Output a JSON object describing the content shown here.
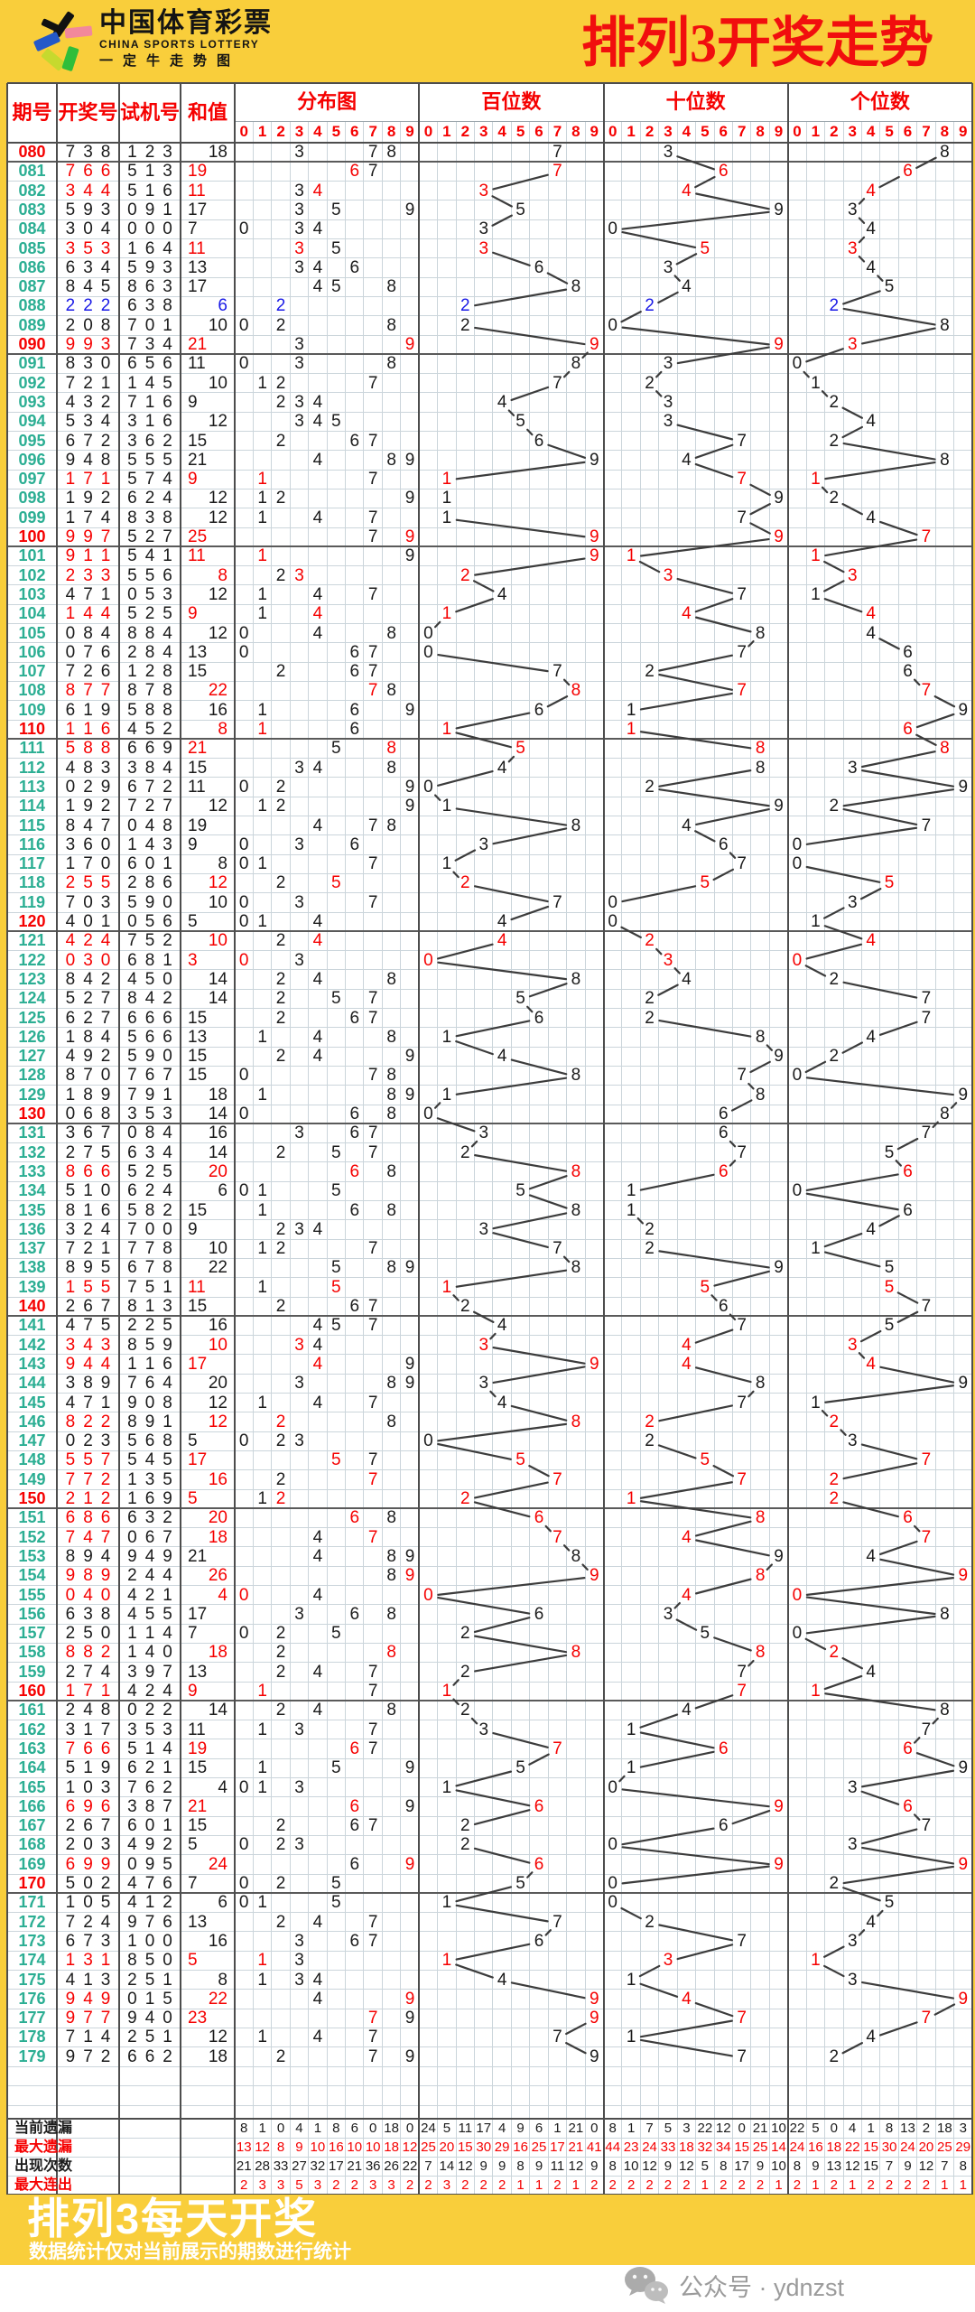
{
  "header": {
    "logo_title": "中国体育彩票",
    "logo_subtitle": "CHINA SPORTS LOTTERY",
    "logo_tagline": "一定牛走势图",
    "page_title": "排列3开奖走势"
  },
  "table_headers": {
    "period": "期号",
    "lottery": "开奖号",
    "test": "试机号",
    "sum": "和值",
    "groups": [
      "分布图",
      "百位数",
      "十位数",
      "个位数"
    ],
    "digit_cols": [
      "0",
      "1",
      "2",
      "3",
      "4",
      "5",
      "6",
      "7",
      "8",
      "9"
    ]
  },
  "chart_data": {
    "type": "table",
    "title": "排列3开奖走势",
    "columns": [
      "期号",
      "开奖号",
      "试机号",
      "和值"
    ],
    "rows": [
      [
        "080",
        "738",
        "123",
        18
      ],
      [
        "081",
        "766",
        "513",
        19
      ],
      [
        "082",
        "344",
        "516",
        11
      ],
      [
        "083",
        "593",
        "091",
        17
      ],
      [
        "084",
        "304",
        "000",
        7
      ],
      [
        "085",
        "353",
        "164",
        11
      ],
      [
        "086",
        "634",
        "593",
        13
      ],
      [
        "087",
        "845",
        "863",
        17
      ],
      [
        "088",
        "222",
        "638",
        6
      ],
      [
        "089",
        "208",
        "701",
        10
      ],
      [
        "090",
        "993",
        "734",
        21
      ],
      [
        "091",
        "830",
        "656",
        11
      ],
      [
        "092",
        "721",
        "145",
        10
      ],
      [
        "093",
        "432",
        "716",
        9
      ],
      [
        "094",
        "534",
        "316",
        12
      ],
      [
        "095",
        "672",
        "362",
        15
      ],
      [
        "096",
        "948",
        "555",
        21
      ],
      [
        "097",
        "171",
        "574",
        9
      ],
      [
        "098",
        "192",
        "624",
        12
      ],
      [
        "099",
        "174",
        "838",
        12
      ],
      [
        "100",
        "997",
        "527",
        25
      ],
      [
        "101",
        "911",
        "541",
        11
      ],
      [
        "102",
        "233",
        "556",
        8
      ],
      [
        "103",
        "471",
        "053",
        12
      ],
      [
        "104",
        "144",
        "525",
        9
      ],
      [
        "105",
        "084",
        "884",
        12
      ],
      [
        "106",
        "076",
        "284",
        13
      ],
      [
        "107",
        "726",
        "128",
        15
      ],
      [
        "108",
        "877",
        "878",
        22
      ],
      [
        "109",
        "619",
        "588",
        16
      ],
      [
        "110",
        "116",
        "452",
        8
      ],
      [
        "111",
        "588",
        "669",
        21
      ],
      [
        "112",
        "483",
        "384",
        15
      ],
      [
        "113",
        "029",
        "672",
        11
      ],
      [
        "114",
        "192",
        "727",
        12
      ],
      [
        "115",
        "847",
        "048",
        19
      ],
      [
        "116",
        "360",
        "143",
        9
      ],
      [
        "117",
        "170",
        "601",
        8
      ],
      [
        "118",
        "255",
        "286",
        12
      ],
      [
        "119",
        "703",
        "590",
        10
      ],
      [
        "120",
        "401",
        "056",
        5
      ],
      [
        "121",
        "424",
        "752",
        10
      ],
      [
        "122",
        "030",
        "681",
        3
      ],
      [
        "123",
        "842",
        "450",
        14
      ],
      [
        "124",
        "527",
        "842",
        14
      ],
      [
        "125",
        "627",
        "666",
        15
      ],
      [
        "126",
        "184",
        "566",
        13
      ],
      [
        "127",
        "492",
        "590",
        15
      ],
      [
        "128",
        "870",
        "767",
        15
      ],
      [
        "129",
        "189",
        "791",
        18
      ],
      [
        "130",
        "068",
        "353",
        14
      ],
      [
        "131",
        "367",
        "084",
        16
      ],
      [
        "132",
        "275",
        "634",
        14
      ],
      [
        "133",
        "866",
        "525",
        20
      ],
      [
        "134",
        "510",
        "624",
        6
      ],
      [
        "135",
        "816",
        "582",
        15
      ],
      [
        "136",
        "324",
        "700",
        9
      ],
      [
        "137",
        "721",
        "778",
        10
      ],
      [
        "138",
        "895",
        "678",
        22
      ],
      [
        "139",
        "155",
        "751",
        11
      ],
      [
        "140",
        "267",
        "813",
        15
      ],
      [
        "141",
        "475",
        "225",
        16
      ],
      [
        "142",
        "343",
        "859",
        10
      ],
      [
        "143",
        "944",
        "116",
        17
      ],
      [
        "144",
        "389",
        "764",
        20
      ],
      [
        "145",
        "471",
        "908",
        12
      ],
      [
        "146",
        "822",
        "891",
        12
      ],
      [
        "147",
        "023",
        "568",
        5
      ],
      [
        "148",
        "557",
        "545",
        17
      ],
      [
        "149",
        "772",
        "135",
        16
      ],
      [
        "150",
        "212",
        "169",
        5
      ],
      [
        "151",
        "686",
        "632",
        20
      ],
      [
        "152",
        "747",
        "067",
        18
      ],
      [
        "153",
        "894",
        "949",
        21
      ],
      [
        "154",
        "989",
        "244",
        26
      ],
      [
        "155",
        "040",
        "421",
        4
      ],
      [
        "156",
        "638",
        "455",
        17
      ],
      [
        "157",
        "250",
        "114",
        7
      ],
      [
        "158",
        "882",
        "140",
        18
      ],
      [
        "159",
        "274",
        "397",
        13
      ],
      [
        "160",
        "171",
        "424",
        9
      ],
      [
        "161",
        "248",
        "022",
        14
      ],
      [
        "162",
        "317",
        "353",
        11
      ],
      [
        "163",
        "766",
        "514",
        19
      ],
      [
        "164",
        "519",
        "621",
        15
      ],
      [
        "165",
        "103",
        "762",
        4
      ],
      [
        "166",
        "696",
        "387",
        21
      ],
      [
        "167",
        "267",
        "601",
        15
      ],
      [
        "168",
        "203",
        "492",
        5
      ],
      [
        "169",
        "699",
        "095",
        24
      ],
      [
        "170",
        "502",
        "476",
        7
      ],
      [
        "171",
        "105",
        "412",
        6
      ],
      [
        "172",
        "724",
        "976",
        13
      ],
      [
        "173",
        "673",
        "100",
        16
      ],
      [
        "174",
        "131",
        "850",
        5
      ],
      [
        "175",
        "413",
        "251",
        8
      ],
      [
        "176",
        "949",
        "015",
        22
      ],
      [
        "177",
        "977",
        "940",
        23
      ],
      [
        "178",
        "714",
        "251",
        12
      ],
      [
        "179",
        "972",
        "662",
        18
      ]
    ],
    "stats": [
      {
        "label": "当前遗漏",
        "color": "black",
        "values": [
          8,
          1,
          0,
          4,
          1,
          8,
          6,
          0,
          18,
          0,
          24,
          5,
          11,
          17,
          4,
          9,
          6,
          1,
          21,
          0,
          8,
          1,
          7,
          5,
          3,
          22,
          12,
          0,
          21,
          10,
          22,
          5,
          0,
          4,
          1,
          8,
          13,
          2,
          18,
          3
        ]
      },
      {
        "label": "最大遗漏",
        "color": "red",
        "values": [
          13,
          12,
          8,
          9,
          10,
          16,
          10,
          10,
          18,
          12,
          25,
          20,
          15,
          30,
          29,
          16,
          25,
          17,
          21,
          41,
          44,
          23,
          24,
          33,
          18,
          32,
          34,
          15,
          25,
          14,
          24,
          16,
          18,
          22,
          15,
          30,
          24,
          20,
          25,
          29
        ]
      },
      {
        "label": "出现次数",
        "color": "black",
        "values": [
          21,
          28,
          33,
          27,
          32,
          17,
          21,
          36,
          26,
          22,
          7,
          14,
          12,
          9,
          9,
          8,
          9,
          11,
          12,
          9,
          8,
          10,
          12,
          9,
          12,
          5,
          8,
          17,
          9,
          10,
          8,
          9,
          13,
          12,
          15,
          7,
          9,
          12,
          7,
          8
        ]
      },
      {
        "label": "最大连出",
        "color": "red",
        "values": [
          2,
          3,
          3,
          5,
          3,
          2,
          2,
          3,
          3,
          2,
          2,
          3,
          2,
          2,
          2,
          1,
          1,
          2,
          1,
          2,
          2,
          2,
          2,
          2,
          2,
          1,
          2,
          2,
          2,
          1,
          2,
          1,
          2,
          1,
          2,
          2,
          2,
          2,
          1,
          1
        ]
      }
    ]
  },
  "footer": {
    "headline": "排列3每天开奖",
    "note": "数据统计仅对当前展示的期数进行统计",
    "wechat": "公众号 · ydnzst"
  },
  "colors": {
    "band_yellow": "#F9CE3B",
    "title_red": "#F10E0E",
    "header_red": "#F50000",
    "period_teal": "#2BAE93",
    "num_black": "#1B1B1B",
    "num_red": "#F50000",
    "num_blue": "#1A1AE6",
    "grid_light": "#CBD5DB",
    "grid_dark": "#4D4D4D",
    "trend_line": "#3C3C3C",
    "footer_text": "#FFFFFF",
    "wechat_gray": "#9B9B9B"
  }
}
